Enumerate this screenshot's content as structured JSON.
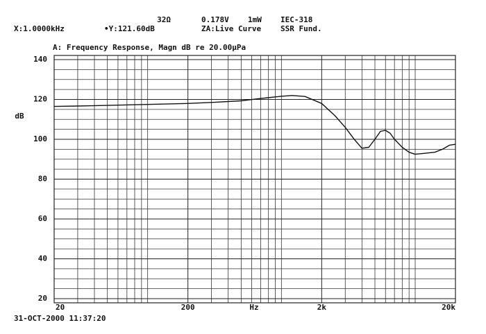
{
  "chart_data": {
    "type": "line",
    "title": "A: Frequency Response, Magn dB re 20.00μPa",
    "annotations": [
      "X:1.0000kHz",
      "•Y:121.60dB",
      "32Ω",
      "0.178V",
      "1mW",
      "IEC-318",
      "ZA:Live Curve",
      "SSR Fund."
    ],
    "timestamp": "31-OCT-2000 11:37:20",
    "ylabel": "dB",
    "xlabel": "Hz",
    "xscale": "log",
    "grid": true,
    "color": "#111111",
    "xlim": [
      20,
      20000
    ],
    "ylim": [
      20,
      140
    ],
    "xticks": [
      20,
      200,
      {
        "value": 2000,
        "label": "2k"
      },
      {
        "value": 20000,
        "label": "20k"
      }
    ],
    "xminor": [
      30,
      40,
      50,
      60,
      70,
      80,
      90,
      100,
      300,
      400,
      500,
      600,
      700,
      800,
      900,
      1000,
      3000,
      4000,
      5000,
      6000,
      7000,
      8000,
      9000,
      10000
    ],
    "yticks": [
      20,
      40,
      60,
      80,
      100,
      120,
      140
    ],
    "yminor": [
      25,
      30,
      35,
      45,
      50,
      55,
      65,
      70,
      75,
      85,
      90,
      95,
      105,
      110,
      115,
      125,
      130,
      135
    ],
    "x": [
      20,
      30,
      50,
      100,
      200,
      300,
      500,
      700,
      1000,
      1200,
      1500,
      2000,
      2500,
      3000,
      3500,
      4000,
      4500,
      5000,
      5500,
      6000,
      6500,
      7000,
      8000,
      9000,
      10000,
      12000,
      14000,
      16000,
      18000,
      20000
    ],
    "series": [
      {
        "values": [
          116.5,
          116.7,
          117,
          117.5,
          118,
          118.5,
          119.3,
          120.5,
          121.6,
          122,
          121.5,
          118,
          112,
          106,
          100,
          95.5,
          96,
          100,
          104,
          104.5,
          103,
          100,
          96,
          93.5,
          92.5,
          93,
          93.5,
          95,
          97,
          97.5
        ]
      }
    ]
  }
}
